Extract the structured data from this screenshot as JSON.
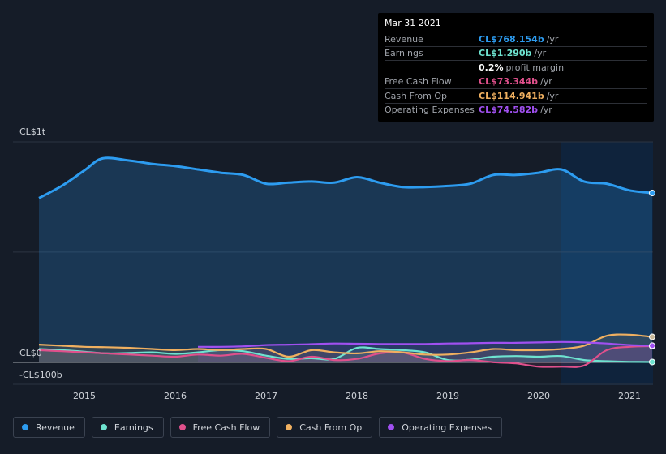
{
  "tooltip": {
    "date": "Mar 31 2021",
    "rows": [
      {
        "label": "Revenue",
        "value": "CL$768.154b",
        "unit": "/yr",
        "color": "#2d9cf0"
      },
      {
        "label": "Earnings",
        "value": "CL$1.290b",
        "unit": "/yr",
        "color": "#6ee3d0"
      },
      {
        "label": "",
        "value": "0.2%",
        "unit": "profit margin",
        "color": "#ffffff"
      },
      {
        "label": "Free Cash Flow",
        "value": "CL$73.344b",
        "unit": "/yr",
        "color": "#e0508c"
      },
      {
        "label": "Cash From Op",
        "value": "CL$114.941b",
        "unit": "/yr",
        "color": "#f0b060"
      },
      {
        "label": "Operating Expenses",
        "value": "CL$74.582b",
        "unit": "/yr",
        "color": "#a050f0"
      }
    ]
  },
  "legend": [
    {
      "label": "Revenue",
      "color": "#2d9cf0"
    },
    {
      "label": "Earnings",
      "color": "#6ee3d0"
    },
    {
      "label": "Free Cash Flow",
      "color": "#e0508c"
    },
    {
      "label": "Cash From Op",
      "color": "#f0b060"
    },
    {
      "label": "Operating Expenses",
      "color": "#a050f0"
    }
  ],
  "chart_data": {
    "type": "area",
    "ytick_labels": [
      "CL$1t",
      "CL$0",
      "-CL$100b"
    ],
    "ylim": [
      -100,
      1000
    ],
    "xlim": [
      2014.5,
      2021.25
    ],
    "x_ticks": [
      2015,
      2016,
      2017,
      2018,
      2019,
      2020,
      2021
    ],
    "x_tick_labels": [
      "2015",
      "2016",
      "2017",
      "2018",
      "2019",
      "2020",
      "2021"
    ],
    "highlight_start": 2020.25,
    "series": [
      {
        "name": "Revenue",
        "color": "#2d9cf0",
        "filled": true,
        "x": [
          2014.5,
          2014.75,
          2015.0,
          2015.2,
          2015.5,
          2015.75,
          2016.0,
          2016.25,
          2016.5,
          2016.75,
          2017.0,
          2017.25,
          2017.5,
          2017.75,
          2018.0,
          2018.25,
          2018.5,
          2018.75,
          2019.0,
          2019.25,
          2019.5,
          2019.75,
          2020.0,
          2020.25,
          2020.5,
          2020.75,
          2021.0,
          2021.25
        ],
        "y": [
          745,
          800,
          870,
          925,
          915,
          900,
          890,
          875,
          860,
          850,
          810,
          815,
          820,
          815,
          840,
          815,
          795,
          795,
          800,
          810,
          850,
          850,
          860,
          875,
          820,
          810,
          780,
          768
        ]
      },
      {
        "name": "Earnings",
        "color": "#6ee3d0",
        "filled": false,
        "x": [
          2014.5,
          2014.75,
          2015.0,
          2015.25,
          2015.5,
          2015.75,
          2016.0,
          2016.25,
          2016.5,
          2016.75,
          2017.0,
          2017.25,
          2017.5,
          2017.75,
          2018.0,
          2018.25,
          2018.5,
          2018.75,
          2019.0,
          2019.25,
          2019.5,
          2019.75,
          2020.0,
          2020.25,
          2020.5,
          2020.75,
          2021.0,
          2021.25
        ],
        "y": [
          60,
          55,
          48,
          40,
          42,
          45,
          38,
          45,
          55,
          50,
          30,
          15,
          18,
          15,
          65,
          60,
          55,
          45,
          10,
          12,
          25,
          28,
          25,
          28,
          10,
          5,
          2,
          1.3
        ]
      },
      {
        "name": "Free Cash Flow",
        "color": "#e0508c",
        "filled": false,
        "x": [
          2014.5,
          2014.75,
          2015.0,
          2015.25,
          2015.5,
          2015.75,
          2016.0,
          2016.25,
          2016.5,
          2016.75,
          2017.0,
          2017.25,
          2017.5,
          2017.75,
          2018.0,
          2018.25,
          2018.5,
          2018.75,
          2019.0,
          2019.25,
          2019.5,
          2019.75,
          2020.0,
          2020.25,
          2020.5,
          2020.75,
          2021.0,
          2021.25
        ],
        "y": [
          55,
          50,
          45,
          40,
          35,
          30,
          25,
          35,
          30,
          38,
          20,
          5,
          25,
          10,
          15,
          40,
          45,
          15,
          5,
          10,
          0,
          -5,
          -20,
          -20,
          -15,
          55,
          70,
          73
        ]
      },
      {
        "name": "Cash From Op",
        "color": "#f0b060",
        "filled": false,
        "x": [
          2014.5,
          2014.75,
          2015.0,
          2015.25,
          2015.5,
          2015.75,
          2016.0,
          2016.25,
          2016.5,
          2016.75,
          2017.0,
          2017.25,
          2017.5,
          2017.75,
          2018.0,
          2018.25,
          2018.5,
          2018.75,
          2019.0,
          2019.25,
          2019.5,
          2019.75,
          2020.0,
          2020.25,
          2020.5,
          2020.75,
          2021.0,
          2021.25
        ],
        "y": [
          80,
          75,
          70,
          68,
          65,
          60,
          55,
          60,
          55,
          60,
          60,
          25,
          55,
          45,
          40,
          50,
          45,
          35,
          35,
          45,
          60,
          55,
          55,
          60,
          75,
          120,
          125,
          115
        ]
      },
      {
        "name": "Operating Expenses",
        "color": "#a050f0",
        "filled": false,
        "x": [
          2016.25,
          2016.5,
          2016.75,
          2017.0,
          2017.25,
          2017.5,
          2017.75,
          2018.0,
          2018.25,
          2018.5,
          2018.75,
          2019.0,
          2019.25,
          2019.5,
          2019.75,
          2020.0,
          2020.25,
          2020.5,
          2020.75,
          2021.0,
          2021.25
        ],
        "y": [
          70,
          70,
          72,
          78,
          80,
          82,
          85,
          84,
          83,
          83,
          83,
          85,
          86,
          88,
          88,
          90,
          92,
          90,
          85,
          78,
          75
        ]
      }
    ]
  }
}
